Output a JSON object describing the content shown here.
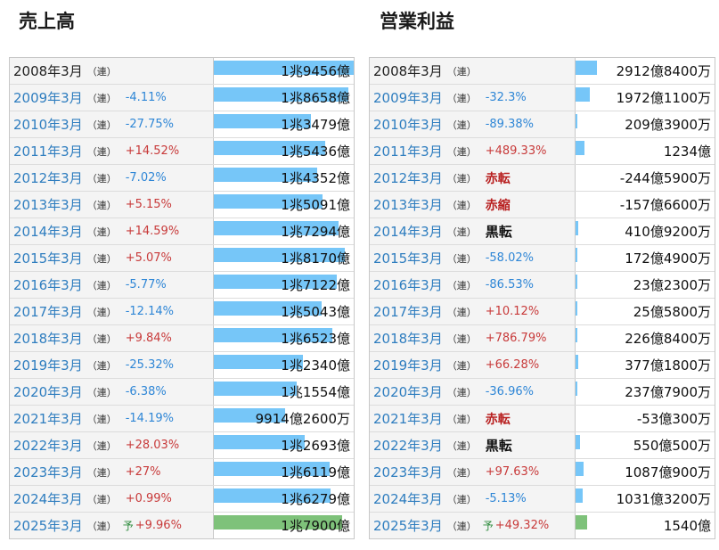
{
  "sales": {
    "title": "売上高",
    "max": 19456,
    "rows": [
      {
        "year": "2008年3月",
        "ren": "（連）",
        "yo": "",
        "change": "",
        "dir": "",
        "tag": "",
        "tag_color": "",
        "value": "1兆9456億",
        "amount": 19456,
        "forecast": false
      },
      {
        "year": "2009年3月",
        "ren": "（連）",
        "yo": "",
        "change": "-4.11%",
        "dir": "down",
        "tag": "",
        "tag_color": "",
        "value": "1兆8658億",
        "amount": 18658,
        "forecast": false
      },
      {
        "year": "2010年3月",
        "ren": "（連）",
        "yo": "",
        "change": "-27.75%",
        "dir": "down",
        "tag": "",
        "tag_color": "",
        "value": "1兆3479億",
        "amount": 13479,
        "forecast": false
      },
      {
        "year": "2011年3月",
        "ren": "（連）",
        "yo": "",
        "change": "+14.52%",
        "dir": "up",
        "tag": "",
        "tag_color": "",
        "value": "1兆5436億",
        "amount": 15436,
        "forecast": false
      },
      {
        "year": "2012年3月",
        "ren": "（連）",
        "yo": "",
        "change": "-7.02%",
        "dir": "down",
        "tag": "",
        "tag_color": "",
        "value": "1兆4352億",
        "amount": 14352,
        "forecast": false
      },
      {
        "year": "2013年3月",
        "ren": "（連）",
        "yo": "",
        "change": "+5.15%",
        "dir": "up",
        "tag": "",
        "tag_color": "",
        "value": "1兆5091億",
        "amount": 15091,
        "forecast": false
      },
      {
        "year": "2014年3月",
        "ren": "（連）",
        "yo": "",
        "change": "+14.59%",
        "dir": "up",
        "tag": "",
        "tag_color": "",
        "value": "1兆7294億",
        "amount": 17294,
        "forecast": false
      },
      {
        "year": "2015年3月",
        "ren": "（連）",
        "yo": "",
        "change": "+5.07%",
        "dir": "up",
        "tag": "",
        "tag_color": "",
        "value": "1兆8170億",
        "amount": 18170,
        "forecast": false
      },
      {
        "year": "2016年3月",
        "ren": "（連）",
        "yo": "",
        "change": "-5.77%",
        "dir": "down",
        "tag": "",
        "tag_color": "",
        "value": "1兆7122億",
        "amount": 17122,
        "forecast": false
      },
      {
        "year": "2017年3月",
        "ren": "（連）",
        "yo": "",
        "change": "-12.14%",
        "dir": "down",
        "tag": "",
        "tag_color": "",
        "value": "1兆5043億",
        "amount": 15043,
        "forecast": false
      },
      {
        "year": "2018年3月",
        "ren": "（連）",
        "yo": "",
        "change": "+9.84%",
        "dir": "up",
        "tag": "",
        "tag_color": "",
        "value": "1兆6523億",
        "amount": 16523,
        "forecast": false
      },
      {
        "year": "2019年3月",
        "ren": "（連）",
        "yo": "",
        "change": "-25.32%",
        "dir": "down",
        "tag": "",
        "tag_color": "",
        "value": "1兆2340億",
        "amount": 12340,
        "forecast": false
      },
      {
        "year": "2020年3月",
        "ren": "（連）",
        "yo": "",
        "change": "-6.38%",
        "dir": "down",
        "tag": "",
        "tag_color": "",
        "value": "1兆1554億",
        "amount": 11554,
        "forecast": false
      },
      {
        "year": "2021年3月",
        "ren": "（連）",
        "yo": "",
        "change": "-14.19%",
        "dir": "down",
        "tag": "",
        "tag_color": "",
        "value": "9914億2600万",
        "amount": 9914,
        "forecast": false
      },
      {
        "year": "2022年3月",
        "ren": "（連）",
        "yo": "",
        "change": "+28.03%",
        "dir": "up",
        "tag": "",
        "tag_color": "",
        "value": "1兆2693億",
        "amount": 12693,
        "forecast": false
      },
      {
        "year": "2023年3月",
        "ren": "（連）",
        "yo": "",
        "change": "+27%",
        "dir": "up",
        "tag": "",
        "tag_color": "",
        "value": "1兆6119億",
        "amount": 16119,
        "forecast": false
      },
      {
        "year": "2024年3月",
        "ren": "（連）",
        "yo": "",
        "change": "+0.99%",
        "dir": "up",
        "tag": "",
        "tag_color": "",
        "value": "1兆6279億",
        "amount": 16279,
        "forecast": false
      },
      {
        "year": "2025年3月",
        "ren": "（連）",
        "yo": "予",
        "change": "+9.96%",
        "dir": "up",
        "tag": "",
        "tag_color": "",
        "value": "1兆7900億",
        "amount": 17900,
        "forecast": true
      }
    ]
  },
  "profit": {
    "title": "営業利益",
    "max": 2912.84,
    "rows": [
      {
        "year": "2008年3月",
        "ren": "（連）",
        "yo": "",
        "change": "",
        "dir": "",
        "tag": "",
        "tag_color": "",
        "value": "2912億8400万",
        "amount": 2912.84,
        "forecast": false
      },
      {
        "year": "2009年3月",
        "ren": "（連）",
        "yo": "",
        "change": "-32.3%",
        "dir": "down",
        "tag": "",
        "tag_color": "",
        "value": "1972億1100万",
        "amount": 1972.11,
        "forecast": false
      },
      {
        "year": "2010年3月",
        "ren": "（連）",
        "yo": "",
        "change": "-89.38%",
        "dir": "down",
        "tag": "",
        "tag_color": "",
        "value": "209億3900万",
        "amount": 209.39,
        "forecast": false
      },
      {
        "year": "2011年3月",
        "ren": "（連）",
        "yo": "",
        "change": "+489.33%",
        "dir": "up",
        "tag": "",
        "tag_color": "",
        "value": "1234億",
        "amount": 1234,
        "forecast": false
      },
      {
        "year": "2012年3月",
        "ren": "（連）",
        "yo": "",
        "change": "",
        "dir": "",
        "tag": "赤転",
        "tag_color": "red",
        "value": "-244億5900万",
        "amount": 0,
        "forecast": false
      },
      {
        "year": "2013年3月",
        "ren": "（連）",
        "yo": "",
        "change": "",
        "dir": "",
        "tag": "赤縮",
        "tag_color": "red",
        "value": "-157億6600万",
        "amount": 0,
        "forecast": false
      },
      {
        "year": "2014年3月",
        "ren": "（連）",
        "yo": "",
        "change": "",
        "dir": "",
        "tag": "黒転",
        "tag_color": "black",
        "value": "410億9200万",
        "amount": 410.92,
        "forecast": false
      },
      {
        "year": "2015年3月",
        "ren": "（連）",
        "yo": "",
        "change": "-58.02%",
        "dir": "down",
        "tag": "",
        "tag_color": "",
        "value": "172億4900万",
        "amount": 172.49,
        "forecast": false
      },
      {
        "year": "2016年3月",
        "ren": "（連）",
        "yo": "",
        "change": "-86.53%",
        "dir": "down",
        "tag": "",
        "tag_color": "",
        "value": "23億2300万",
        "amount": 23.23,
        "forecast": false
      },
      {
        "year": "2017年3月",
        "ren": "（連）",
        "yo": "",
        "change": "+10.12%",
        "dir": "up",
        "tag": "",
        "tag_color": "",
        "value": "25億5800万",
        "amount": 25.58,
        "forecast": false
      },
      {
        "year": "2018年3月",
        "ren": "（連）",
        "yo": "",
        "change": "+786.79%",
        "dir": "up",
        "tag": "",
        "tag_color": "",
        "value": "226億8400万",
        "amount": 226.84,
        "forecast": false
      },
      {
        "year": "2019年3月",
        "ren": "（連）",
        "yo": "",
        "change": "+66.28%",
        "dir": "up",
        "tag": "",
        "tag_color": "",
        "value": "377億1800万",
        "amount": 377.18,
        "forecast": false
      },
      {
        "year": "2020年3月",
        "ren": "（連）",
        "yo": "",
        "change": "-36.96%",
        "dir": "down",
        "tag": "",
        "tag_color": "",
        "value": "237億7900万",
        "amount": 237.79,
        "forecast": false
      },
      {
        "year": "2021年3月",
        "ren": "（連）",
        "yo": "",
        "change": "",
        "dir": "",
        "tag": "赤転",
        "tag_color": "red",
        "value": "-53億300万",
        "amount": 0,
        "forecast": false
      },
      {
        "year": "2022年3月",
        "ren": "（連）",
        "yo": "",
        "change": "",
        "dir": "",
        "tag": "黒転",
        "tag_color": "black",
        "value": "550億500万",
        "amount": 550.05,
        "forecast": false
      },
      {
        "year": "2023年3月",
        "ren": "（連）",
        "yo": "",
        "change": "+97.63%",
        "dir": "up",
        "tag": "",
        "tag_color": "",
        "value": "1087億900万",
        "amount": 1087.09,
        "forecast": false
      },
      {
        "year": "2024年3月",
        "ren": "（連）",
        "yo": "",
        "change": "-5.13%",
        "dir": "down",
        "tag": "",
        "tag_color": "",
        "value": "1031億3200万",
        "amount": 1031.32,
        "forecast": false
      },
      {
        "year": "2025年3月",
        "ren": "（連）",
        "yo": "予",
        "change": "+49.32%",
        "dir": "up",
        "tag": "",
        "tag_color": "",
        "value": "1540億",
        "amount": 1540,
        "forecast": true
      }
    ]
  },
  "colors": {
    "bar": "#76c6f8",
    "forecast_bar": "#7ec27a",
    "increase": "#c83a3a",
    "decrease": "#2e86d6",
    "year_link": "#2e7dbf"
  }
}
